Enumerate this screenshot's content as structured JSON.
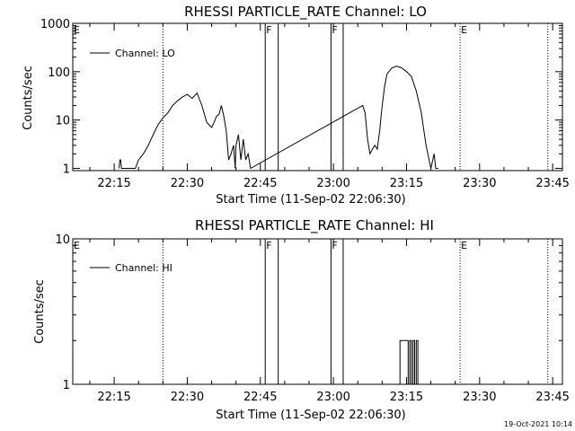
{
  "chart_data": [
    {
      "type": "line",
      "title": "RHESSI PARTICLE_RATE Channel: LO",
      "xlabel": "Start Time (11-Sep-02 22:06:30)",
      "ylabel": "Counts/sec",
      "yscale": "log",
      "xlim": [
        "22:06:30",
        "23:47:00"
      ],
      "ylim": [
        0.9,
        1000
      ],
      "x_tick_labels": [
        "22:15",
        "22:30",
        "22:45",
        "23:00",
        "23:15",
        "23:30",
        "23:45"
      ],
      "y_tick_labels": [
        "1",
        "10",
        "100",
        "1000"
      ],
      "legend": {
        "entries": [
          "Channel: LO"
        ],
        "position": "top-left"
      },
      "series": [
        {
          "name": "Channel: LO",
          "x": [
            "22:16:00",
            "22:16:10",
            "22:16:20",
            "22:16:30",
            "22:19:20",
            "22:20:00",
            "22:21:00",
            "22:22:00",
            "22:23:00",
            "22:24:00",
            "22:25:00",
            "22:26:00",
            "22:27:00",
            "22:28:00",
            "22:29:00",
            "22:30:00",
            "22:31:00",
            "22:32:00",
            "22:33:00",
            "22:34:00",
            "22:35:00",
            "22:35:30",
            "22:36:00",
            "22:36:30",
            "22:37:00",
            "22:37:30",
            "22:38:00",
            "22:38:30",
            "22:39:00",
            "22:39:30",
            "22:39:50",
            "22:40:00",
            "22:40:30",
            "22:41:00",
            "22:41:30",
            "22:42:00",
            "22:42:30",
            "22:43:00",
            "23:06:00",
            "23:06:30",
            "23:07:00",
            "23:07:30",
            "23:08:00",
            "23:08:30",
            "23:09:00",
            "23:09:30",
            "23:10:00",
            "23:10:30",
            "23:11:00",
            "23:12:00",
            "23:13:00",
            "23:14:00",
            "23:15:00",
            "23:16:00",
            "23:17:00",
            "23:18:00",
            "23:19:00",
            "23:20:00",
            "23:20:40",
            "23:21:00",
            "23:21:30"
          ],
          "y": [
            1,
            1.5,
            1.5,
            1,
            1,
            1.5,
            2,
            3,
            5,
            8,
            11,
            14,
            20,
            25,
            30,
            34,
            28,
            36,
            20,
            9,
            7,
            9,
            12,
            13,
            20,
            12,
            6,
            1.5,
            2,
            3,
            1,
            3,
            5,
            1.5,
            4,
            1.5,
            2,
            1,
            20,
            14,
            4,
            2,
            2.5,
            3,
            2.5,
            6,
            20,
            50,
            90,
            120,
            130,
            120,
            100,
            80,
            40,
            15,
            3,
            1,
            2,
            1,
            1
          ]
        }
      ],
      "boundaries": {
        "solid_lines": [
          "22:46:00",
          "22:48:40",
          "22:59:30",
          "23:02:00"
        ],
        "dotted_lines": [
          "22:25:00",
          "23:26:00",
          "23:44:00"
        ]
      },
      "flags": [
        {
          "text": "E",
          "x": "22:06:30"
        },
        {
          "text": "F",
          "x": "22:46:00"
        },
        {
          "text": "F",
          "x": "22:59:30"
        },
        {
          "text": "E",
          "x": "23:26:00"
        }
      ]
    },
    {
      "type": "line",
      "title": "RHESSI PARTICLE_RATE Channel: HI",
      "xlabel": "Start Time (11-Sep-02 22:06:30)",
      "ylabel": "Counts/sec",
      "yscale": "log",
      "xlim": [
        "22:06:30",
        "23:47:00"
      ],
      "ylim": [
        1,
        10
      ],
      "x_tick_labels": [
        "22:15",
        "22:30",
        "22:45",
        "23:00",
        "23:15",
        "23:30",
        "23:45"
      ],
      "y_tick_labels": [
        "1",
        "10"
      ],
      "legend": {
        "entries": [
          "Channel: HI"
        ],
        "position": "top-left"
      },
      "series": [
        {
          "name": "Channel: HI",
          "x": [
            "23:13:40",
            "23:13:40",
            "23:15:20",
            "23:15:20",
            "23:15:40",
            "23:15:40",
            "23:16:00",
            "23:16:00",
            "23:16:20",
            "23:16:20",
            "23:16:40",
            "23:16:40",
            "23:17:00",
            "23:17:00",
            "23:17:20",
            "23:17:20",
            "23:17:40",
            "23:17:40"
          ],
          "y": [
            1,
            2,
            2,
            1,
            1,
            2,
            2,
            1,
            1,
            2,
            2,
            1,
            1,
            2,
            2,
            1,
            1,
            1
          ]
        }
      ],
      "boundaries": {
        "solid_lines": [
          "22:46:00",
          "22:48:40",
          "22:59:30",
          "23:02:00"
        ],
        "dotted_lines": [
          "22:25:00",
          "23:26:00",
          "23:44:00"
        ]
      },
      "flags": [
        {
          "text": "E",
          "x": "22:06:30"
        },
        {
          "text": "F",
          "x": "22:46:00"
        },
        {
          "text": "F",
          "x": "22:59:30"
        },
        {
          "text": "E",
          "x": "23:26:00"
        }
      ]
    }
  ],
  "footer": {
    "timestamp": "19-Oct-2021 10:14"
  }
}
